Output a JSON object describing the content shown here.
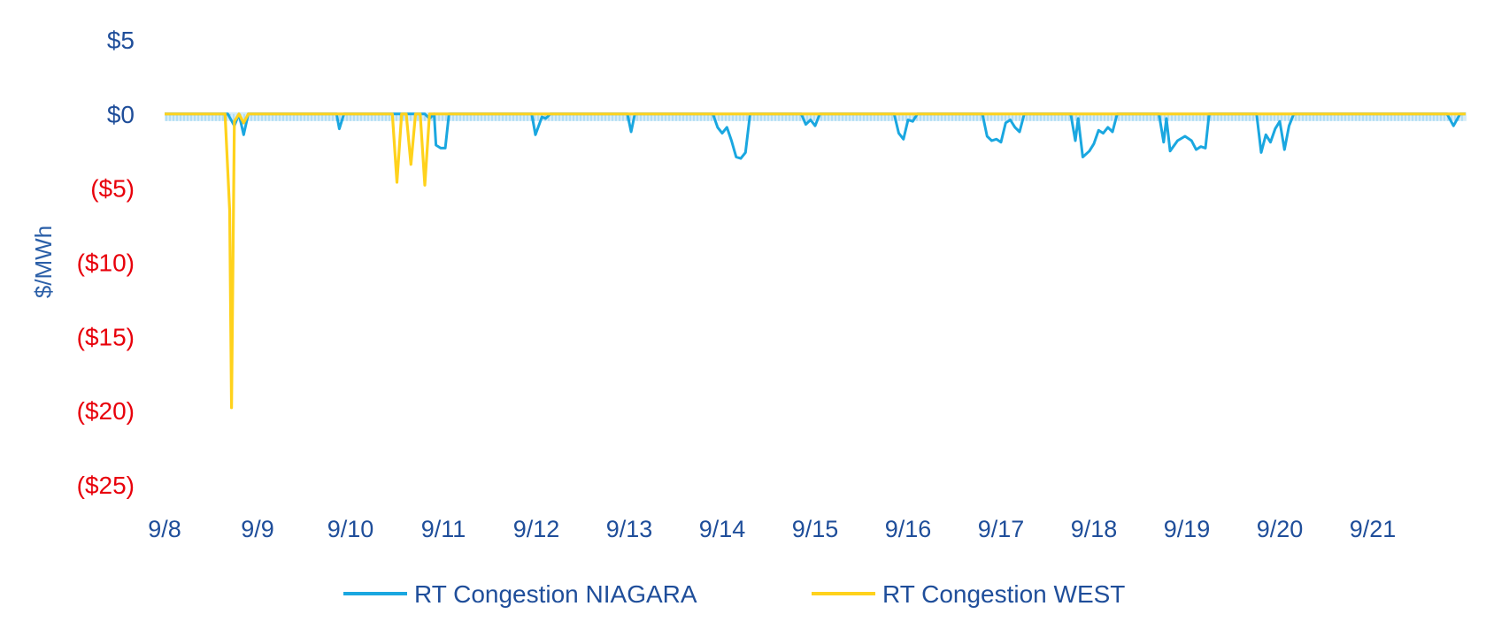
{
  "chart_data": {
    "type": "line",
    "title": "",
    "xlabel": "",
    "ylabel": "$/MWh",
    "ylim": [
      -25,
      5
    ],
    "y_ticks": [
      {
        "value": 5,
        "label": "$5"
      },
      {
        "value": 0,
        "label": "$0"
      },
      {
        "value": -5,
        "label": "($5)"
      },
      {
        "value": -10,
        "label": "($10)"
      },
      {
        "value": -15,
        "label": "($15)"
      },
      {
        "value": -20,
        "label": "($20)"
      },
      {
        "value": -25,
        "label": "($25)"
      }
    ],
    "negative_label_color": "#e8000b",
    "positive_label_color": "#1f4e9a",
    "x_ticks": [
      "9/8",
      "9/9",
      "9/10",
      "9/11",
      "9/12",
      "9/13",
      "9/14",
      "9/15",
      "9/16",
      "9/17",
      "9/18",
      "9/19",
      "9/20",
      "9/21"
    ],
    "x_range_days": [
      0,
      14
    ],
    "grid": false,
    "legend_position": "bottom",
    "series": [
      {
        "name": "RT Congestion NIAGARA",
        "color": "#1aa7e0",
        "points": [
          [
            0,
            0
          ],
          [
            0.68,
            0
          ],
          [
            0.75,
            -0.8
          ],
          [
            0.8,
            0
          ],
          [
            0.85,
            -1.4
          ],
          [
            0.9,
            0
          ],
          [
            1.85,
            0
          ],
          [
            1.88,
            -1.0
          ],
          [
            1.93,
            0
          ],
          [
            2.8,
            0
          ],
          [
            2.85,
            -0.3
          ],
          [
            2.9,
            0
          ],
          [
            2.92,
            -2.1
          ],
          [
            2.97,
            -2.3
          ],
          [
            3.02,
            -2.3
          ],
          [
            3.06,
            0
          ],
          [
            3.95,
            0
          ],
          [
            3.99,
            -1.4
          ],
          [
            4.06,
            -0.2
          ],
          [
            4.1,
            -0.3
          ],
          [
            4.15,
            0
          ],
          [
            4.98,
            0
          ],
          [
            5.02,
            -1.2
          ],
          [
            5.06,
            0
          ],
          [
            5.9,
            0
          ],
          [
            5.95,
            -0.9
          ],
          [
            6.0,
            -1.3
          ],
          [
            6.05,
            -0.9
          ],
          [
            6.1,
            -1.8
          ],
          [
            6.15,
            -2.9
          ],
          [
            6.2,
            -3.0
          ],
          [
            6.25,
            -2.6
          ],
          [
            6.3,
            0
          ],
          [
            6.85,
            0
          ],
          [
            6.9,
            -0.7
          ],
          [
            6.95,
            -0.4
          ],
          [
            7.0,
            -0.8
          ],
          [
            7.05,
            0
          ],
          [
            7.85,
            0
          ],
          [
            7.9,
            -1.3
          ],
          [
            7.95,
            -1.7
          ],
          [
            8.0,
            -0.4
          ],
          [
            8.05,
            -0.5
          ],
          [
            8.1,
            0
          ],
          [
            8.8,
            0
          ],
          [
            8.85,
            -1.5
          ],
          [
            8.9,
            -1.8
          ],
          [
            8.95,
            -1.7
          ],
          [
            9.0,
            -1.9
          ],
          [
            9.05,
            -0.6
          ],
          [
            9.1,
            -0.4
          ],
          [
            9.15,
            -0.9
          ],
          [
            9.2,
            -1.2
          ],
          [
            9.25,
            0
          ],
          [
            9.75,
            0
          ],
          [
            9.8,
            -1.8
          ],
          [
            9.83,
            -0.3
          ],
          [
            9.88,
            -2.9
          ],
          [
            9.95,
            -2.5
          ],
          [
            10.0,
            -2.0
          ],
          [
            10.05,
            -1.1
          ],
          [
            10.1,
            -1.3
          ],
          [
            10.15,
            -0.9
          ],
          [
            10.2,
            -1.2
          ],
          [
            10.25,
            0
          ],
          [
            10.7,
            0
          ],
          [
            10.75,
            -1.9
          ],
          [
            10.78,
            -0.3
          ],
          [
            10.82,
            -2.5
          ],
          [
            10.9,
            -1.8
          ],
          [
            10.98,
            -1.5
          ],
          [
            11.05,
            -1.8
          ],
          [
            11.1,
            -2.4
          ],
          [
            11.15,
            -2.2
          ],
          [
            11.2,
            -2.3
          ],
          [
            11.24,
            0
          ],
          [
            11.75,
            0
          ],
          [
            11.8,
            -2.6
          ],
          [
            11.85,
            -1.4
          ],
          [
            11.9,
            -1.9
          ],
          [
            11.95,
            -1.0
          ],
          [
            12.0,
            -0.5
          ],
          [
            12.05,
            -2.4
          ],
          [
            12.1,
            -0.8
          ],
          [
            12.15,
            0
          ],
          [
            13.8,
            0
          ],
          [
            13.87,
            -0.8
          ],
          [
            13.94,
            0
          ],
          [
            14.0,
            0
          ]
        ]
      },
      {
        "name": "RT Congestion WEST",
        "color": "#ffd21c",
        "points": [
          [
            0,
            0
          ],
          [
            0.65,
            0
          ],
          [
            0.7,
            -6.5
          ],
          [
            0.72,
            -19.8
          ],
          [
            0.75,
            -0.5
          ],
          [
            0.8,
            0
          ],
          [
            0.85,
            -0.6
          ],
          [
            0.9,
            0
          ],
          [
            2.45,
            0
          ],
          [
            2.5,
            -4.6
          ],
          [
            2.55,
            0
          ],
          [
            2.6,
            0
          ],
          [
            2.65,
            -3.4
          ],
          [
            2.7,
            0
          ],
          [
            2.75,
            0
          ],
          [
            2.8,
            -4.8
          ],
          [
            2.85,
            0
          ],
          [
            14.0,
            0
          ]
        ]
      }
    ]
  }
}
